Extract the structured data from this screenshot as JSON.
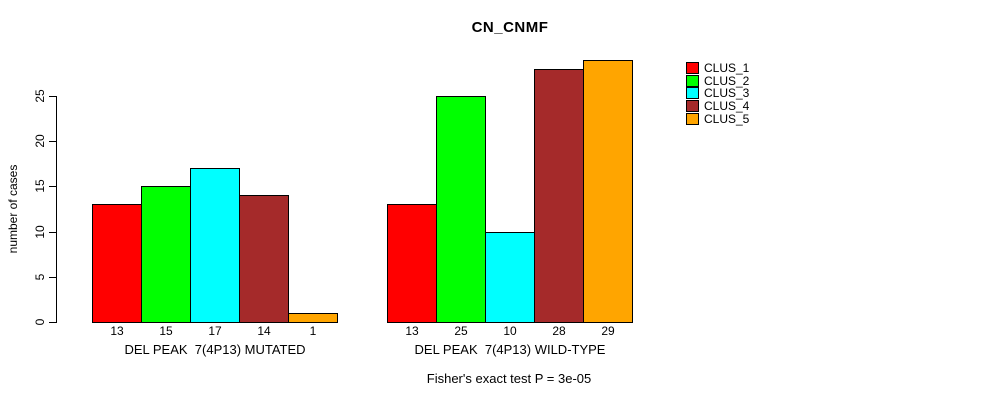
{
  "chart_data": {
    "type": "bar",
    "title": "CN_CNMF",
    "ylabel": "number of cases",
    "subtitle": "Fisher's exact test P = 3e-05",
    "categories": [
      "DEL PEAK  7(4P13) MUTATED",
      "DEL PEAK  7(4P13) WILD-TYPE"
    ],
    "series": [
      {
        "name": "CLUS_1",
        "color": "#FF0000",
        "values": [
          13,
          13
        ]
      },
      {
        "name": "CLUS_2",
        "color": "#00FF00",
        "values": [
          15,
          25
        ]
      },
      {
        "name": "CLUS_3",
        "color": "#00FFFF",
        "values": [
          17,
          10
        ]
      },
      {
        "name": "CLUS_4",
        "color": "#A52A2A",
        "values": [
          14,
          28
        ]
      },
      {
        "name": "CLUS_5",
        "color": "#FFA500",
        "values": [
          1,
          29
        ]
      }
    ],
    "yticks": [
      0,
      5,
      10,
      15,
      20,
      25
    ],
    "ylim": [
      0,
      25
    ],
    "grid": false,
    "bar_value_labels": true,
    "legend_position": "right",
    "background_color": "#FFFFFF",
    "axis_color": "#000000"
  }
}
